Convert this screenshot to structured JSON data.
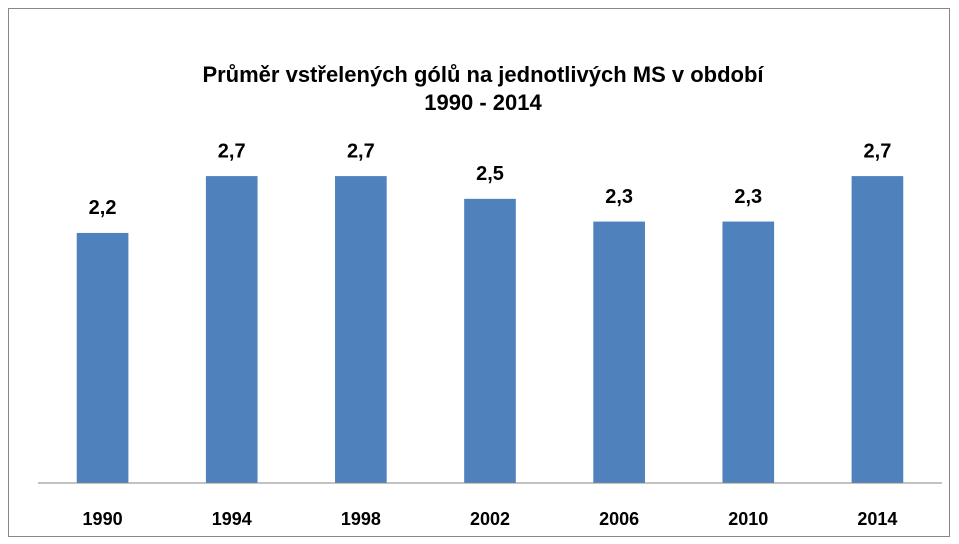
{
  "chart_data": {
    "type": "bar",
    "title": [
      "Průměr vstřelených gólů na jednotlivých MS v období",
      "1990 - 2014"
    ],
    "categories": [
      "1990",
      "1994",
      "1998",
      "2002",
      "2006",
      "2010",
      "2014"
    ],
    "values": [
      2.2,
      2.7,
      2.7,
      2.5,
      2.3,
      2.3,
      2.7
    ],
    "value_labels": [
      "2,2",
      "2,7",
      "2,7",
      "2,5",
      "2,3",
      "2,3",
      "2,7"
    ],
    "color": "#4f81bd",
    "ylim": [
      0,
      3
    ]
  }
}
